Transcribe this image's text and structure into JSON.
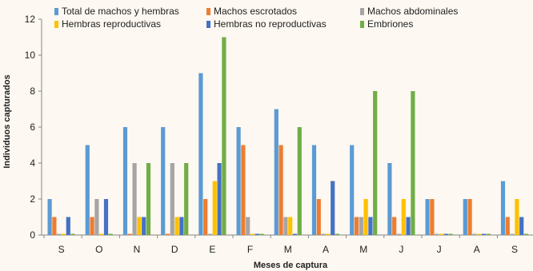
{
  "chart_data": {
    "type": "bar",
    "title": "",
    "xlabel": "Meses de captura",
    "ylabel": "Individuos capturados",
    "ylim": [
      0,
      12
    ],
    "yticks": [
      0,
      2,
      4,
      6,
      8,
      10,
      12
    ],
    "grid": false,
    "legend_position": "top",
    "categories": [
      "S",
      "O",
      "N",
      "D",
      "E",
      "F",
      "M",
      "A",
      "M",
      "J",
      "J",
      "A",
      "S"
    ],
    "series": [
      {
        "name": "Total de machos y hembras",
        "color": "#5b9bd5",
        "values": [
          2,
          5,
          6,
          6,
          9,
          6,
          7,
          5,
          5,
          4,
          2,
          2,
          3
        ]
      },
      {
        "name": "Machos escrotados",
        "color": "#ed7d31",
        "values": [
          1,
          1,
          0,
          0,
          2,
          5,
          5,
          2,
          1,
          1,
          2,
          2,
          1
        ]
      },
      {
        "name": "Machos abdominales",
        "color": "#a5a5a5",
        "values": [
          0,
          2,
          4,
          4,
          0,
          1,
          1,
          0,
          1,
          0,
          0,
          0,
          0
        ]
      },
      {
        "name": "Hembras reproductivas",
        "color": "#ffc000",
        "values": [
          0,
          0,
          1,
          1,
          3,
          0,
          1,
          0,
          2,
          2,
          0,
          0,
          2
        ]
      },
      {
        "name": "Hembras no reproductivas",
        "color": "#4472c4",
        "values": [
          1,
          2,
          1,
          1,
          4,
          0,
          0,
          3,
          1,
          1,
          0,
          0,
          1
        ]
      },
      {
        "name": "Embriones",
        "color": "#70ad47",
        "values": [
          0,
          0,
          4,
          4,
          11,
          0,
          6,
          0,
          8,
          8,
          0,
          0,
          0
        ]
      }
    ]
  }
}
